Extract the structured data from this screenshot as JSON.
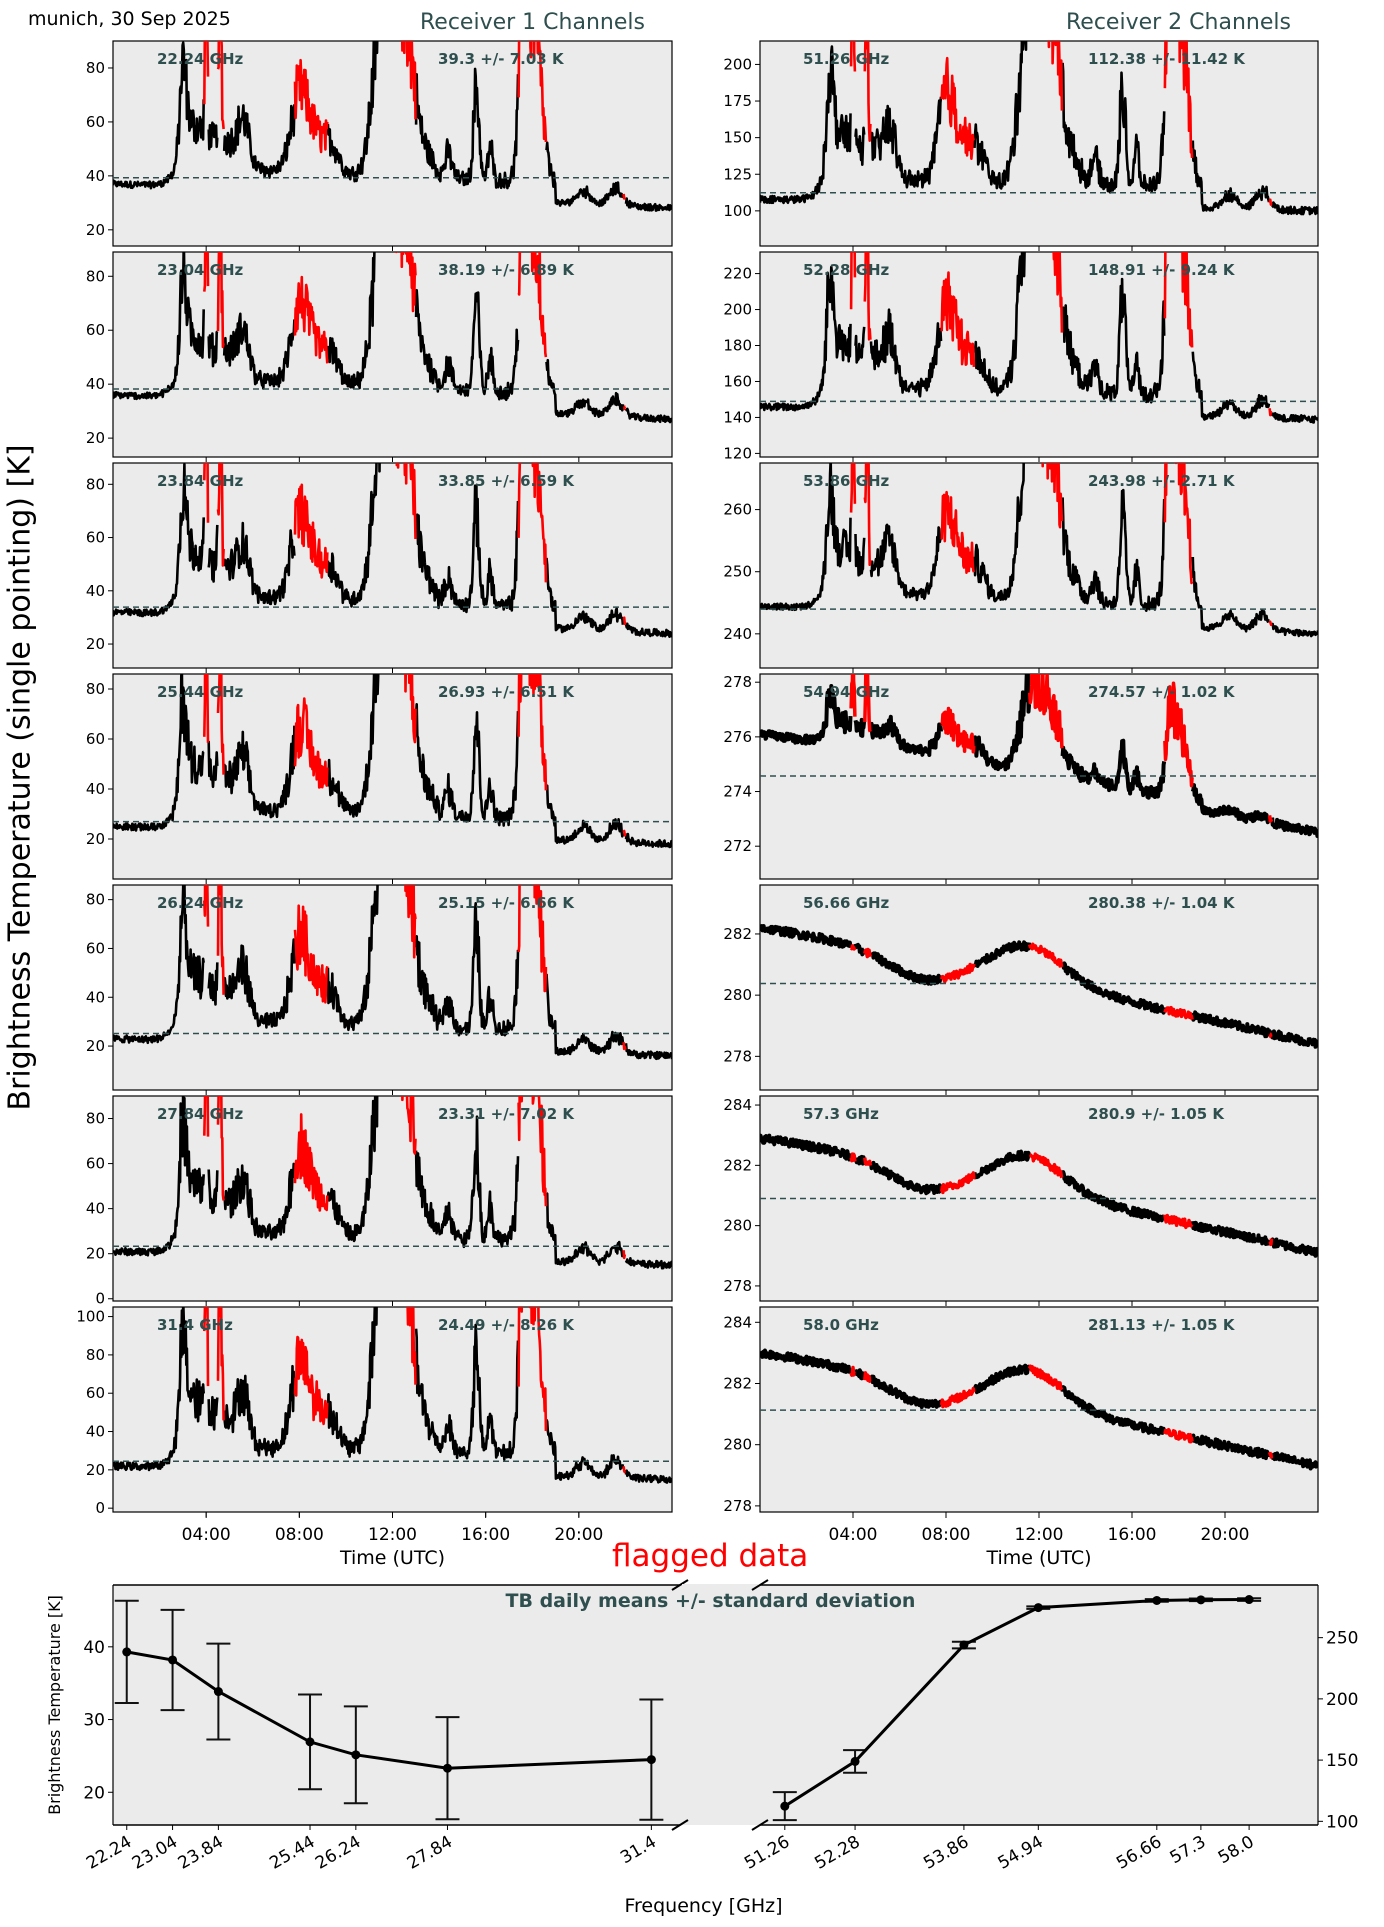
{
  "header": {
    "location_date": "munich, 30 Sep 2025",
    "receiver1_title": "Receiver 1 Channels",
    "receiver2_title": "Receiver 2 Channels",
    "ylabel_main": "Brightness Temperature (single pointing) [K]",
    "flag_label": "flagged data"
  },
  "colors": {
    "panel_bg": "#ebebeb",
    "good_data": "#000000",
    "flagged_data": "#ff0000",
    "annotation": "#2f4f4f",
    "mean_line": "#2f4f4f",
    "flag_label": "#ff0000"
  },
  "chart_data": [
    {
      "type": "line",
      "title": "Receiver 1 Channels",
      "xlabel": "Time (UTC)",
      "x_ticks": [
        "04:00",
        "08:00",
        "12:00",
        "16:00",
        "20:00"
      ],
      "x_range_hours": [
        0,
        24
      ],
      "flag_legend": "flagged data",
      "panels": [
        {
          "freq_label": "22.24 GHz",
          "stats_label": "39.3 +/- 7.03 K",
          "mean": 39.3,
          "std": 7.03,
          "yticks": [
            20,
            40,
            60,
            80
          ],
          "ylim": [
            14,
            90
          ],
          "baseline_start": 37,
          "baseline_end": 28
        },
        {
          "freq_label": "23.04 GHz",
          "stats_label": "38.19 +/- 6.89 K",
          "mean": 38.19,
          "std": 6.89,
          "yticks": [
            20,
            40,
            60,
            80
          ],
          "ylim": [
            13,
            89
          ],
          "baseline_start": 36,
          "baseline_end": 27
        },
        {
          "freq_label": "23.84 GHz",
          "stats_label": "33.85 +/- 6.59 K",
          "mean": 33.85,
          "std": 6.59,
          "yticks": [
            20,
            40,
            60,
            80
          ],
          "ylim": [
            11,
            88
          ],
          "baseline_start": 32,
          "baseline_end": 24
        },
        {
          "freq_label": "25.44 GHz",
          "stats_label": "26.93 +/- 6.51 K",
          "mean": 26.93,
          "std": 6.51,
          "yticks": [
            20,
            40,
            60,
            80
          ],
          "ylim": [
            4,
            86
          ],
          "baseline_start": 25,
          "baseline_end": 18
        },
        {
          "freq_label": "26.24 GHz",
          "stats_label": "25.15 +/- 6.66 K",
          "mean": 25.15,
          "std": 6.66,
          "yticks": [
            20,
            40,
            60,
            80
          ],
          "ylim": [
            2,
            86
          ],
          "baseline_start": 23,
          "baseline_end": 16
        },
        {
          "freq_label": "27.84 GHz",
          "stats_label": "23.31 +/- 7.02 K",
          "mean": 23.31,
          "std": 7.02,
          "yticks": [
            0,
            20,
            40,
            60,
            80
          ],
          "ylim": [
            -1,
            90
          ],
          "baseline_start": 21,
          "baseline_end": 15
        },
        {
          "freq_label": "31.4 GHz",
          "stats_label": "24.49 +/- 8.26 K",
          "mean": 24.49,
          "std": 8.26,
          "yticks": [
            0,
            20,
            40,
            60,
            80,
            100
          ],
          "ylim": [
            -2,
            105
          ],
          "baseline_start": 22,
          "baseline_end": 15
        }
      ]
    },
    {
      "type": "line",
      "title": "Receiver 2 Channels",
      "xlabel": "Time (UTC)",
      "x_ticks": [
        "04:00",
        "08:00",
        "12:00",
        "16:00",
        "20:00"
      ],
      "x_range_hours": [
        0,
        24
      ],
      "panels": [
        {
          "freq_label": "51.26 GHz",
          "stats_label": "112.38 +/- 11.42 K",
          "mean": 112.38,
          "std": 11.42,
          "yticks": [
            100,
            125,
            150,
            175,
            200
          ],
          "ylim": [
            76,
            216
          ],
          "baseline_start": 108,
          "baseline_end": 100
        },
        {
          "freq_label": "52.28 GHz",
          "stats_label": "148.91 +/- 9.24 K",
          "mean": 148.91,
          "std": 9.24,
          "yticks": [
            120,
            140,
            160,
            180,
            200,
            220
          ],
          "ylim": [
            118,
            232
          ],
          "baseline_start": 146,
          "baseline_end": 139
        },
        {
          "freq_label": "53.86 GHz",
          "stats_label": "243.98 +/- 2.71 K",
          "mean": 243.98,
          "std": 2.71,
          "yticks": [
            240,
            250,
            260
          ],
          "ylim": [
            234.5,
            267.5
          ],
          "baseline_start": 244.5,
          "baseline_end": 240
        },
        {
          "freq_label": "54.94 GHz",
          "stats_label": "274.57 +/- 1.02 K",
          "mean": 274.57,
          "std": 1.02,
          "yticks": [
            272,
            274,
            276,
            278
          ],
          "ylim": [
            270.8,
            278.3
          ],
          "baseline_start": 276.1,
          "baseline_end": 272.5
        },
        {
          "freq_label": "56.66 GHz",
          "stats_label": "280.38 +/- 1.04 K",
          "mean": 280.38,
          "std": 1.04,
          "yticks": [
            278,
            280,
            282
          ],
          "ylim": [
            276.9,
            283.6
          ],
          "baseline_start": 282.2,
          "baseline_end": 278.4
        },
        {
          "freq_label": "57.3 GHz",
          "stats_label": "280.9 +/- 1.05 K",
          "mean": 280.9,
          "std": 1.05,
          "yticks": [
            278,
            280,
            282,
            284
          ],
          "ylim": [
            277.5,
            284.3
          ],
          "baseline_start": 282.9,
          "baseline_end": 279.1
        },
        {
          "freq_label": "58.0 GHz",
          "stats_label": "281.13 +/- 1.05 K",
          "mean": 281.13,
          "std": 1.05,
          "yticks": [
            278,
            280,
            282,
            284
          ],
          "ylim": [
            277.8,
            284.5
          ],
          "baseline_start": 283.0,
          "baseline_end": 279.3
        }
      ]
    },
    {
      "type": "line",
      "title": "TB daily means +/- standard deviation",
      "xlabel": "Frequency [GHz]",
      "ylabel_left": "Brightness Temperature [K]",
      "left_axis": {
        "categories": [
          "22.24",
          "23.04",
          "23.84",
          "25.44",
          "26.24",
          "27.84",
          "31.4"
        ],
        "x": [
          22.24,
          23.04,
          23.84,
          25.44,
          26.24,
          27.84,
          31.4
        ],
        "values": [
          39.3,
          38.19,
          33.85,
          26.93,
          25.15,
          23.31,
          24.49
        ],
        "errors": [
          7.03,
          6.89,
          6.59,
          6.51,
          6.66,
          7.02,
          8.26
        ],
        "yticks": [
          20,
          30,
          40
        ],
        "ylim": [
          15.5,
          48.5
        ],
        "xlim": [
          22.0,
          31.9
        ]
      },
      "right_axis": {
        "categories": [
          "51.26",
          "52.28",
          "53.86",
          "54.94",
          "56.66",
          "57.3",
          "58.0"
        ],
        "x": [
          51.26,
          52.28,
          53.86,
          54.94,
          56.66,
          57.3,
          58.0
        ],
        "values": [
          112.38,
          148.91,
          243.98,
          274.57,
          280.38,
          280.9,
          281.13
        ],
        "errors": [
          11.42,
          9.24,
          2.71,
          1.02,
          1.04,
          1.05,
          1.05
        ],
        "yticks": [
          100,
          150,
          200,
          250
        ],
        "ylim": [
          97,
          293
        ],
        "xlim": [
          50.9,
          59.0
        ]
      },
      "grid": false
    }
  ]
}
